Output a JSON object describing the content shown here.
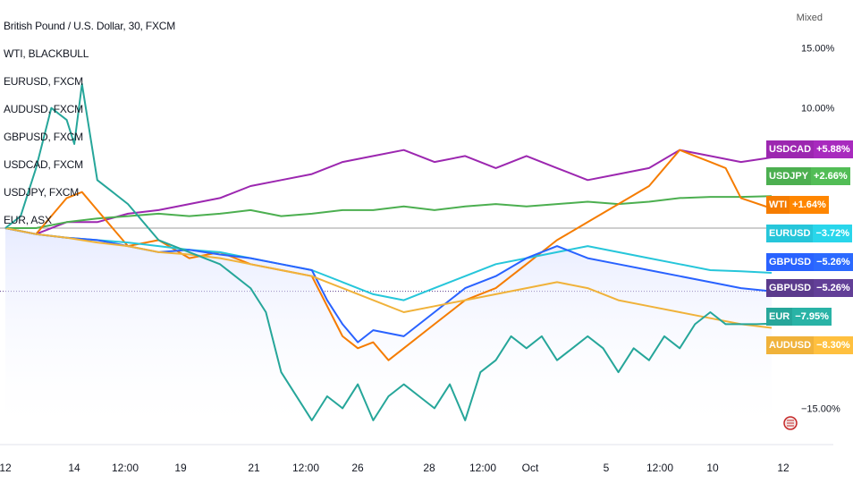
{
  "legend": [
    "British Pound / U.S. Dollar, 30, FXCM",
    "WTI, BLACKBULL",
    "EURUSD, FXCM",
    "AUDUSD, FXCM",
    "GBPUSD, FXCM",
    "USDCAD, FXCM",
    "USDJPY, FXCM",
    "EUR, ASX"
  ],
  "scale_mode": "Mixed",
  "badges": [
    {
      "symbol": "USDCAD",
      "value": "+5.88%",
      "color": "#9c27b0"
    },
    {
      "symbol": "USDJPY",
      "value": "+2.66%",
      "color": "#4caf50"
    },
    {
      "symbol": "WTI",
      "value": "+1.64%",
      "color": "#f57c00"
    },
    {
      "symbol": "EURUSD",
      "value": "−3.72%",
      "color": "#26c6da"
    },
    {
      "symbol": "GBPUSD",
      "value": "−5.26%",
      "color": "#2962ff"
    },
    {
      "symbol": "GBPUSD",
      "value": "−5.26%",
      "color": "#5b3a8c"
    },
    {
      "symbol": "EUR",
      "value": "−7.95%",
      "color": "#26a69a"
    },
    {
      "symbol": "AUDUSD",
      "value": "−8.30%",
      "color": "#f0b23a"
    }
  ],
  "chart_data": {
    "type": "line",
    "y_ticks": [
      "15.00%",
      "10.00%",
      "−15.00%"
    ],
    "x_ticks": [
      "12",
      "14",
      "12:00",
      "19",
      "21",
      "12:00",
      "26",
      "28",
      "12:00",
      "Oct",
      "5",
      "12:00",
      "10",
      "12"
    ],
    "y_unit": "%",
    "ylim": [
      -17.5,
      17.5
    ],
    "series": [
      {
        "name": "USDCAD",
        "color": "#9c27b0",
        "x": [
          0,
          4,
          8,
          12,
          16,
          20,
          24,
          28,
          32,
          36,
          40,
          44,
          48,
          52,
          56,
          60,
          64,
          68,
          72,
          76,
          80,
          84,
          88,
          92,
          96,
          100
        ],
        "y": [
          0,
          -0.5,
          0.5,
          0.5,
          1.2,
          1.5,
          2.0,
          2.5,
          3.5,
          4.0,
          4.5,
          5.5,
          6.0,
          6.5,
          5.5,
          6.0,
          5.0,
          6.0,
          5.0,
          4.0,
          4.5,
          5.0,
          6.5,
          6.0,
          5.5,
          5.88
        ]
      },
      {
        "name": "USDJPY",
        "color": "#4caf50",
        "x": [
          0,
          4,
          8,
          12,
          16,
          20,
          24,
          28,
          32,
          36,
          40,
          44,
          48,
          52,
          56,
          60,
          64,
          68,
          72,
          76,
          80,
          84,
          88,
          92,
          96,
          100
        ],
        "y": [
          0,
          0,
          0.5,
          0.8,
          1.0,
          1.2,
          1.0,
          1.2,
          1.5,
          1.0,
          1.2,
          1.5,
          1.5,
          1.8,
          1.5,
          1.8,
          2.0,
          1.8,
          2.0,
          2.2,
          2.0,
          2.2,
          2.5,
          2.6,
          2.6,
          2.66
        ]
      },
      {
        "name": "WTI",
        "color": "#f57c00",
        "x": [
          0,
          4,
          8,
          10,
          12,
          16,
          20,
          24,
          28,
          32,
          36,
          40,
          44,
          46,
          48,
          50,
          52,
          56,
          60,
          64,
          68,
          72,
          76,
          80,
          84,
          88,
          90,
          92,
          94,
          96,
          100
        ],
        "y": [
          0,
          -0.5,
          2.5,
          3.0,
          1.5,
          -1.5,
          -1.0,
          -2.5,
          -2.0,
          -3.0,
          -3.5,
          -4.0,
          -9.0,
          -10.0,
          -9.5,
          -11.0,
          -10.0,
          -8.0,
          -6.0,
          -5.0,
          -3.0,
          -1.0,
          0.5,
          2.0,
          3.5,
          6.5,
          6.0,
          5.5,
          5.0,
          2.5,
          1.64
        ]
      },
      {
        "name": "EURUSD",
        "color": "#26c6da",
        "x": [
          0,
          4,
          8,
          12,
          16,
          20,
          24,
          28,
          32,
          36,
          40,
          44,
          48,
          52,
          56,
          60,
          64,
          68,
          72,
          76,
          80,
          84,
          88,
          92,
          96,
          100
        ],
        "y": [
          0,
          -0.5,
          -0.8,
          -1.0,
          -1.2,
          -1.5,
          -1.8,
          -2.0,
          -2.5,
          -3.0,
          -3.5,
          -4.5,
          -5.5,
          -6.0,
          -5.0,
          -4.0,
          -3.0,
          -2.5,
          -2.0,
          -1.5,
          -2.0,
          -2.5,
          -3.0,
          -3.5,
          -3.6,
          -3.72
        ]
      },
      {
        "name": "GBPUSD",
        "color": "#2962ff",
        "x": [
          0,
          4,
          8,
          12,
          16,
          20,
          24,
          28,
          32,
          36,
          40,
          42,
          44,
          46,
          48,
          52,
          56,
          60,
          64,
          68,
          72,
          76,
          80,
          84,
          88,
          92,
          96,
          100
        ],
        "y": [
          0,
          -0.5,
          -0.8,
          -1.0,
          -1.5,
          -2.0,
          -1.8,
          -2.2,
          -2.5,
          -3.0,
          -3.5,
          -6.0,
          -8.0,
          -9.5,
          -8.5,
          -9.0,
          -7.0,
          -5.0,
          -4.0,
          -2.5,
          -1.5,
          -2.5,
          -3.0,
          -3.5,
          -4.0,
          -4.5,
          -5.0,
          -5.26
        ]
      },
      {
        "name": "AUDUSD",
        "color": "#f0b23a",
        "x": [
          0,
          4,
          8,
          12,
          16,
          20,
          24,
          28,
          32,
          36,
          40,
          44,
          48,
          52,
          56,
          60,
          64,
          68,
          72,
          76,
          80,
          84,
          88,
          92,
          96,
          100
        ],
        "y": [
          0,
          -0.5,
          -0.8,
          -1.2,
          -1.5,
          -2.0,
          -2.2,
          -2.5,
          -3.0,
          -3.5,
          -4.0,
          -5.0,
          -6.0,
          -7.0,
          -6.5,
          -6.0,
          -5.5,
          -5.0,
          -4.5,
          -5.0,
          -6.0,
          -6.5,
          -7.0,
          -7.5,
          -8.0,
          -8.3
        ]
      },
      {
        "name": "EUR",
        "color": "#26a69a",
        "x": [
          0,
          2,
          4,
          6,
          8,
          9,
          10,
          12,
          14,
          16,
          20,
          24,
          28,
          32,
          34,
          36,
          40,
          42,
          44,
          46,
          48,
          50,
          52,
          54,
          56,
          58,
          60,
          62,
          64,
          66,
          68,
          70,
          72,
          74,
          76,
          78,
          80,
          82,
          84,
          86,
          88,
          90,
          92,
          94,
          96,
          98,
          100
        ],
        "y": [
          0,
          1,
          5,
          10,
          9,
          7,
          12,
          4,
          3,
          2,
          -1,
          -2,
          -3,
          -5,
          -7,
          -12,
          -16,
          -14,
          -15,
          -13,
          -16,
          -14,
          -13,
          -14,
          -15,
          -13,
          -16,
          -12,
          -11,
          -9,
          -10,
          -9,
          -11,
          -10,
          -9,
          -10,
          -12,
          -10,
          -11,
          -9,
          -10,
          -8,
          -7,
          -8,
          -8,
          -8,
          -7.95
        ]
      }
    ]
  }
}
